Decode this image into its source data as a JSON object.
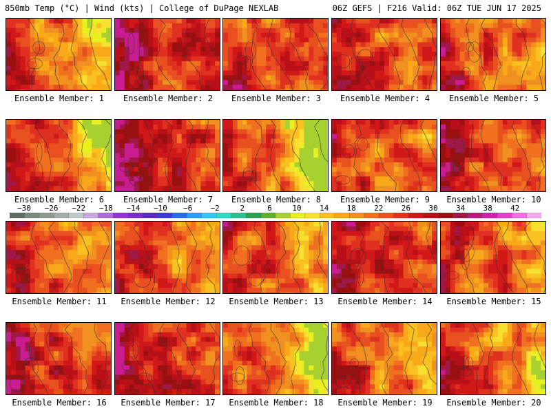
{
  "header": {
    "left_title": "850mb Temp (°C) | Wind (kts) | College of DuPage NEXLAB",
    "right_title": "06Z GEFS | F216 Valid: 06Z TUE JUN 17 2025"
  },
  "colorbar": {
    "tick_labels": [
      "−30",
      "−26",
      "−22",
      "−18",
      "−14",
      "−10",
      "−6",
      "−2",
      "2",
      "6",
      "10",
      "14",
      "18",
      "22",
      "26",
      "30",
      "34",
      "38",
      "42"
    ],
    "colors": [
      "#5e6d5e",
      "#7a8a7a",
      "#8f9a8f",
      "#a4aea4",
      "#c0c8c8",
      "#c9a6e0",
      "#b06ad8",
      "#9b30d0",
      "#7a2ac8",
      "#5a2ac0",
      "#3a3ad8",
      "#2a6ae8",
      "#2a9ef0",
      "#30c8f0",
      "#30d8c8",
      "#30c090",
      "#2ea050",
      "#60b030",
      "#a8d030",
      "#e8f020",
      "#f8e030",
      "#f8c020",
      "#f8a818",
      "#f09020",
      "#f07020",
      "#e85020",
      "#e03020",
      "#d01818",
      "#b81018",
      "#981010",
      "#a01848",
      "#b81878",
      "#d020a8",
      "#e040c8",
      "#f070e0",
      "#f8a8f0"
    ]
  },
  "members": [
    {
      "label": "Ensemble Member: 1"
    },
    {
      "label": "Ensemble Member: 2"
    },
    {
      "label": "Ensemble Member: 3"
    },
    {
      "label": "Ensemble Member: 4"
    },
    {
      "label": "Ensemble Member: 5"
    },
    {
      "label": "Ensemble Member: 6"
    },
    {
      "label": "Ensemble Member: 7"
    },
    {
      "label": "Ensemble Member: 8"
    },
    {
      "label": "Ensemble Member: 9"
    },
    {
      "label": "Ensemble Member: 10"
    },
    {
      "label": "Ensemble Member: 11"
    },
    {
      "label": "Ensemble Member: 12"
    },
    {
      "label": "Ensemble Member: 13"
    },
    {
      "label": "Ensemble Member: 14"
    },
    {
      "label": "Ensemble Member: 15"
    },
    {
      "label": "Ensemble Member: 16"
    },
    {
      "label": "Ensemble Member: 17"
    },
    {
      "label": "Ensemble Member: 18"
    },
    {
      "label": "Ensemble Member: 19"
    },
    {
      "label": "Ensemble Member: 20"
    }
  ]
}
